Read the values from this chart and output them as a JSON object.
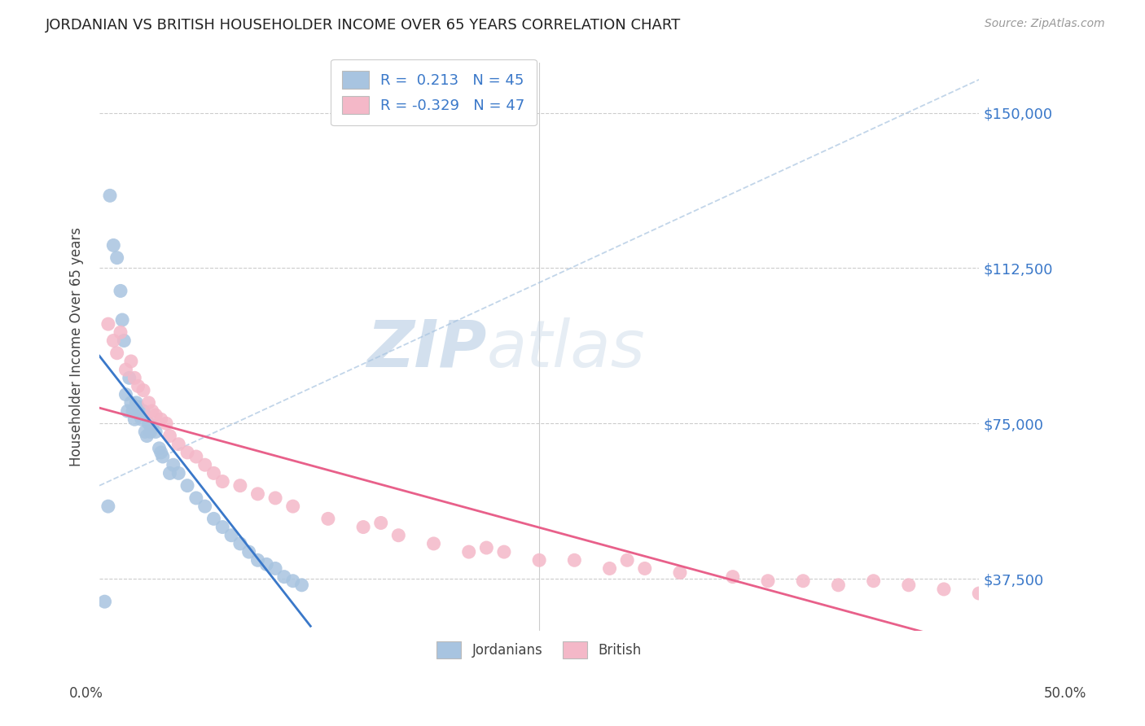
{
  "title": "JORDANIAN VS BRITISH HOUSEHOLDER INCOME OVER 65 YEARS CORRELATION CHART",
  "source": "Source: ZipAtlas.com",
  "ylabel": "Householder Income Over 65 years",
  "y_ticks": [
    37500,
    75000,
    112500,
    150000
  ],
  "y_tick_labels": [
    "$37,500",
    "$75,000",
    "$112,500",
    "$150,000"
  ],
  "jordn_color": "#a8c4e0",
  "brit_color": "#f4b8c8",
  "jordn_line_color": "#3a78c9",
  "brit_line_color": "#e8608a",
  "dash_color": "#a8c4e0",
  "background_color": "#ffffff",
  "grid_color": "#cccccc",
  "xlim": [
    0,
    50
  ],
  "ylim": [
    25000,
    162000
  ],
  "jordn_x": [
    0.3,
    0.5,
    0.6,
    0.8,
    1.0,
    1.2,
    1.3,
    1.4,
    1.5,
    1.6,
    1.7,
    1.8,
    1.9,
    2.0,
    2.1,
    2.2,
    2.3,
    2.4,
    2.5,
    2.6,
    2.7,
    2.8,
    2.9,
    3.0,
    3.2,
    3.4,
    3.5,
    3.6,
    4.0,
    4.2,
    4.5,
    5.0,
    5.5,
    6.0,
    6.5,
    7.0,
    7.5,
    8.0,
    8.5,
    9.0,
    9.5,
    10.0,
    10.5,
    11.0,
    11.5
  ],
  "jordn_y": [
    32000,
    55000,
    130000,
    118000,
    115000,
    107000,
    100000,
    95000,
    82000,
    78000,
    86000,
    80000,
    78000,
    76000,
    80000,
    79000,
    77000,
    76000,
    78000,
    73000,
    72000,
    75000,
    73000,
    74000,
    73000,
    69000,
    68000,
    67000,
    63000,
    65000,
    63000,
    60000,
    57000,
    55000,
    52000,
    50000,
    48000,
    46000,
    44000,
    42000,
    41000,
    40000,
    38000,
    37000,
    36000
  ],
  "brit_x": [
    0.5,
    0.8,
    1.0,
    1.2,
    1.5,
    1.8,
    2.0,
    2.2,
    2.5,
    2.8,
    3.0,
    3.2,
    3.5,
    3.8,
    4.0,
    4.5,
    5.0,
    5.5,
    6.0,
    6.5,
    7.0,
    8.0,
    9.0,
    10.0,
    11.0,
    13.0,
    15.0,
    17.0,
    19.0,
    21.0,
    23.0,
    25.0,
    27.0,
    29.0,
    31.0,
    33.0,
    36.0,
    38.0,
    40.0,
    42.0,
    44.0,
    46.0,
    48.0,
    50.0,
    30.0,
    22.0,
    16.0
  ],
  "brit_y": [
    99000,
    95000,
    92000,
    97000,
    88000,
    90000,
    86000,
    84000,
    83000,
    80000,
    78000,
    77000,
    76000,
    75000,
    72000,
    70000,
    68000,
    67000,
    65000,
    63000,
    61000,
    60000,
    58000,
    57000,
    55000,
    52000,
    50000,
    48000,
    46000,
    44000,
    44000,
    42000,
    42000,
    40000,
    40000,
    39000,
    38000,
    37000,
    37000,
    36000,
    37000,
    36000,
    35000,
    34000,
    42000,
    45000,
    51000
  ]
}
